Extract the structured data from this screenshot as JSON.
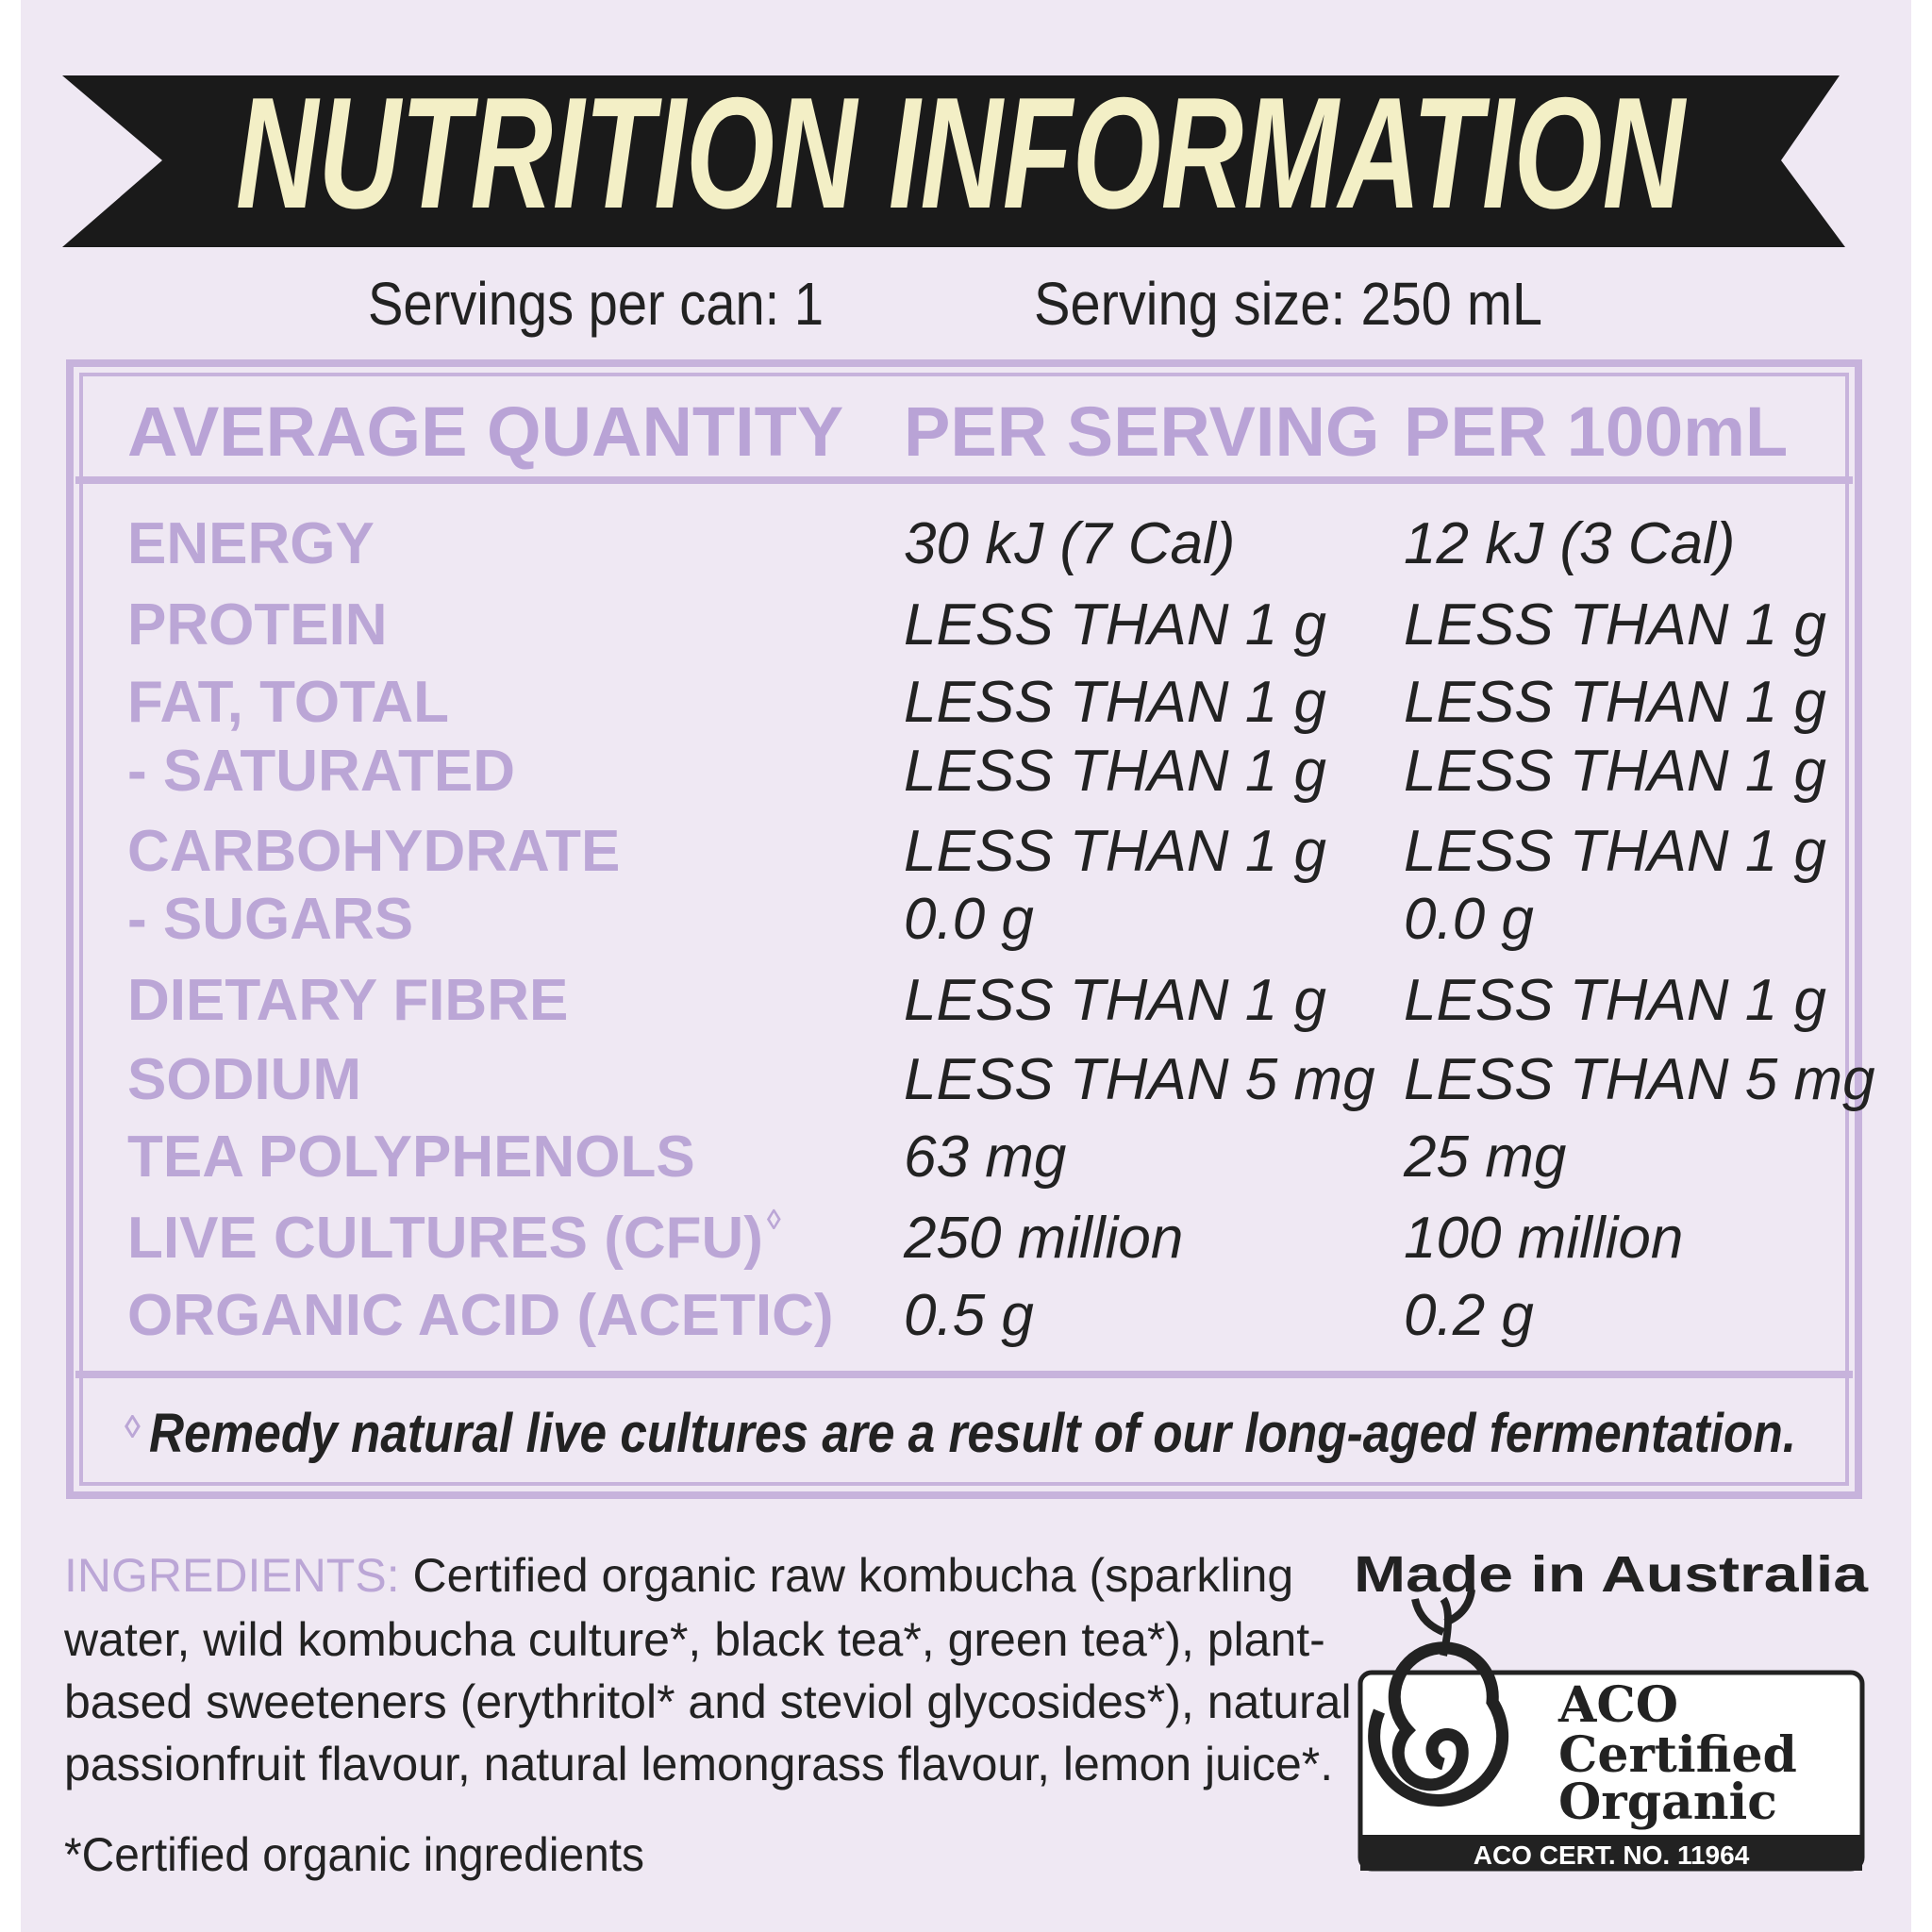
{
  "header": {
    "title": "NUTRITION INFORMATION",
    "servings_per_can": "Servings per can: 1",
    "serving_size": "Serving size: 250 mL"
  },
  "table": {
    "headers": [
      "AVERAGE QUANTITY",
      "PER SERVING",
      "PER 100mL"
    ],
    "rows": [
      [
        "ENERGY",
        "30 kJ (7 Cal)",
        "12 kJ (3 Cal)"
      ],
      [
        "PROTEIN",
        "LESS THAN 1 g",
        "LESS THAN 1 g"
      ],
      [
        "FAT, TOTAL",
        "LESS THAN 1 g",
        "LESS THAN 1 g"
      ],
      [
        "- SATURATED",
        "LESS THAN 1 g",
        "LESS THAN 1 g"
      ],
      [
        "CARBOHYDRATE",
        "LESS THAN 1 g",
        "LESS THAN 1 g"
      ],
      [
        "- SUGARS",
        "0.0 g",
        "0.0 g"
      ],
      [
        "DIETARY FIBRE",
        "LESS THAN 1 g",
        "LESS THAN 1 g"
      ],
      [
        "SODIUM",
        "LESS THAN 5 mg",
        "LESS THAN 5 mg"
      ],
      [
        "TEA POLYPHENOLS",
        "63 mg",
        "25 mg"
      ],
      [
        "LIVE CULTURES (CFU)",
        "250 million",
        "100 million"
      ],
      [
        "ORGANIC ACID (ACETIC)",
        "0.5 g",
        "0.2 g"
      ]
    ],
    "marker": "◊",
    "footnote": "Remedy natural live cultures are a result of our long-aged fermentation."
  },
  "ingredients": {
    "label": "INGREDIENTS:",
    "lines": [
      " Certified organic raw kombucha (sparkling",
      "water, wild kombucha culture*, black tea*, green tea*), plant-",
      "based sweeteners (erythritol* and steviol glycosides*), natural",
      "passionfruit flavour, natural lemongrass flavour, lemon juice*."
    ],
    "note": "*Certified organic ingredients"
  },
  "origin": {
    "made_in": "Made in Australia",
    "cert_lines": [
      "ACO",
      "Certified",
      "Organic"
    ],
    "cert_number": "ACO CERT. NO. 11964"
  }
}
